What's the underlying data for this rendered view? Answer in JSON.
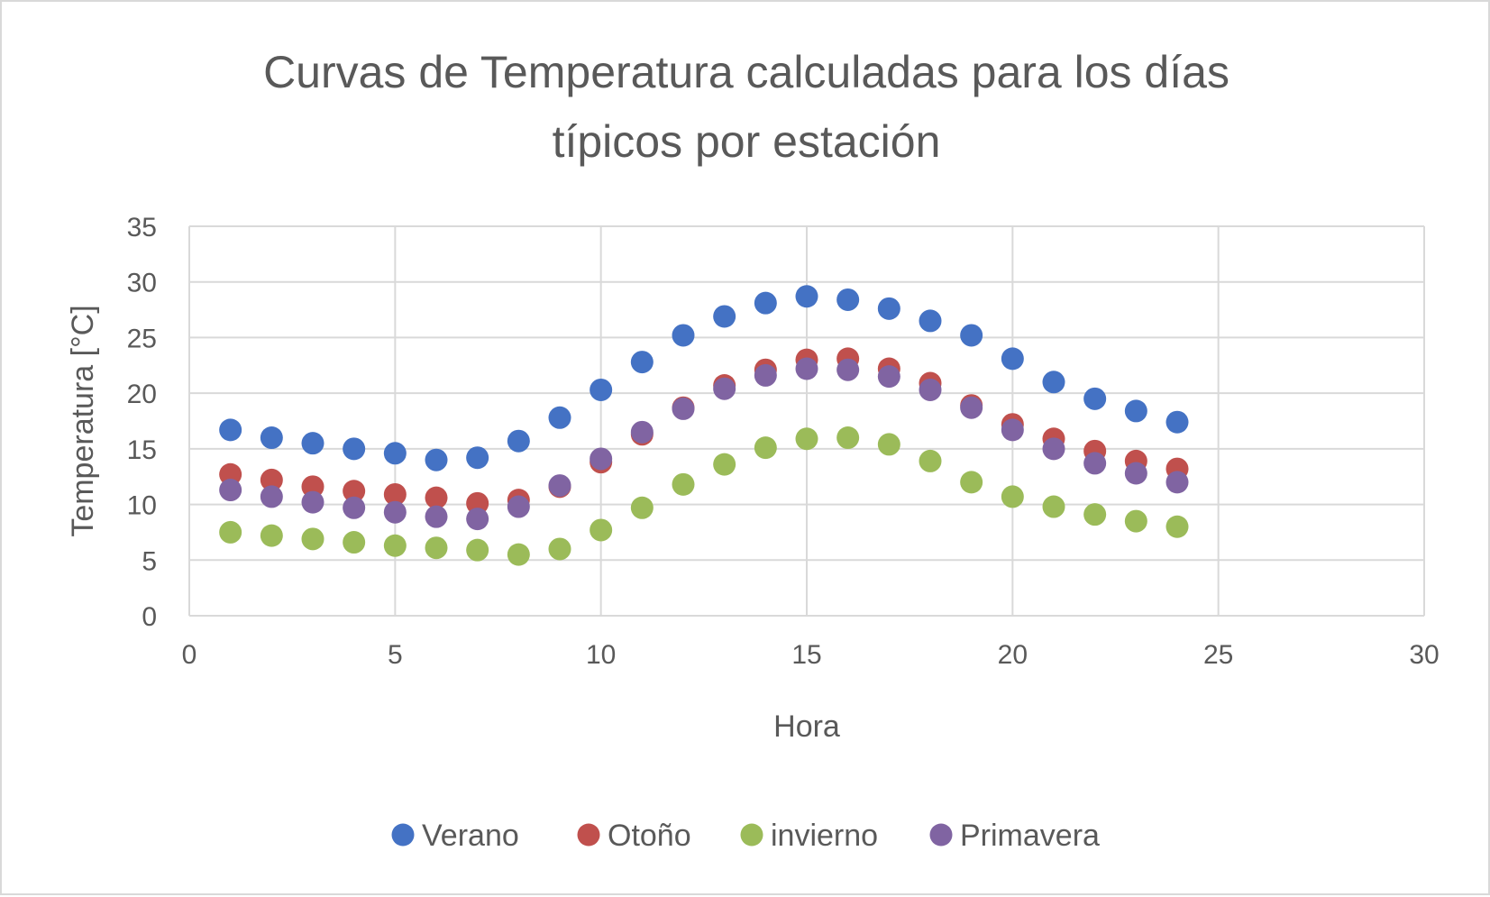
{
  "chart_data": {
    "type": "scatter",
    "title_lines": [
      "Curvas de Temperatura calculadas para los días",
      "típicos por estación"
    ],
    "xlabel": "Hora",
    "ylabel": "Temperatura [°C]",
    "xlim": [
      0,
      30
    ],
    "ylim": [
      0,
      35
    ],
    "x_ticks": [
      0,
      5,
      10,
      15,
      20,
      25,
      30
    ],
    "y_ticks": [
      0,
      5,
      10,
      15,
      20,
      25,
      30,
      35
    ],
    "grid": true,
    "legend_position": "bottom",
    "x": [
      1,
      2,
      3,
      4,
      5,
      6,
      7,
      8,
      9,
      10,
      11,
      12,
      13,
      14,
      15,
      16,
      17,
      18,
      19,
      20,
      21,
      22,
      23,
      24
    ],
    "series": [
      {
        "name": "Verano",
        "color": "#4472c4",
        "values": [
          16.7,
          16.0,
          15.5,
          15.0,
          14.6,
          14.0,
          14.2,
          15.7,
          17.8,
          20.3,
          22.8,
          25.2,
          26.9,
          28.1,
          28.7,
          28.4,
          27.6,
          26.5,
          25.2,
          23.1,
          21.0,
          19.5,
          18.4,
          17.4
        ]
      },
      {
        "name": "Otoño",
        "color": "#c0504d",
        "values": [
          12.7,
          12.2,
          11.6,
          11.2,
          10.9,
          10.6,
          10.1,
          10.4,
          11.6,
          13.8,
          16.3,
          18.7,
          20.7,
          22.1,
          23.0,
          23.1,
          22.2,
          20.9,
          18.9,
          17.2,
          15.9,
          14.8,
          13.9,
          13.2
        ]
      },
      {
        "name": "invierno",
        "color": "#9bbb59",
        "values": [
          7.5,
          7.2,
          6.9,
          6.6,
          6.3,
          6.1,
          5.9,
          5.5,
          6.0,
          7.7,
          9.7,
          11.8,
          13.6,
          15.1,
          15.9,
          16.0,
          15.4,
          13.9,
          12.0,
          10.7,
          9.8,
          9.1,
          8.5,
          8.0
        ]
      },
      {
        "name": "Primavera",
        "color": "#8064a2",
        "values": [
          11.3,
          10.7,
          10.2,
          9.7,
          9.3,
          8.9,
          8.7,
          9.8,
          11.7,
          14.1,
          16.5,
          18.6,
          20.4,
          21.6,
          22.2,
          22.1,
          21.5,
          20.3,
          18.7,
          16.7,
          15.0,
          13.7,
          12.8,
          12.0
        ]
      }
    ]
  }
}
